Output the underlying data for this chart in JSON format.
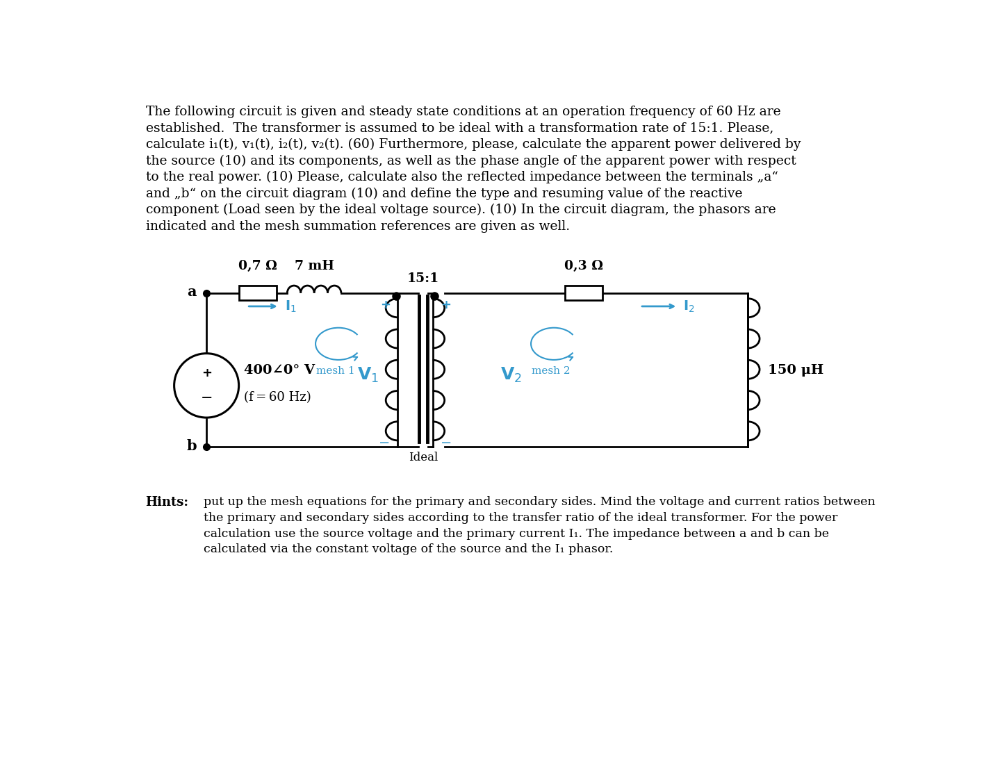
{
  "background_color": "#ffffff",
  "body_text_line1": "The following circuit is given and steady state conditions at an operation frequency of 60 Hz are",
  "body_text_line2": "established.  The transformer is assumed to be ideal with a transformation rate of 15:1. Please,",
  "body_text_line3": "calculate i₁(t), v₁(t), i₂(t), v₂(t). (60) Furthermore, please, calculate the apparent power delivered by",
  "body_text_line4": "the source (10) and its components, as well as the phase angle of the apparent power with respect",
  "body_text_line5": "to the real power. (10) Please, calculate also the reflected impedance between the terminals „a“",
  "body_text_line6": "and „b“ on the circuit diagram (10) and define the type and resuming value of the reactive",
  "body_text_line7": "component (Load seen by the ideal voltage source). (10) In the circuit diagram, the phasors are",
  "body_text_line8": "indicated and the mesh summation references are given as well.",
  "hints_label": "Hints:",
  "hints_line1": "put up the mesh equations for the primary and secondary sides. Mind the voltage and current ratios between",
  "hints_line2": "the primary and secondary sides according to the transfer ratio of the ideal transformer. For the power",
  "hints_line3": "calculation use the source voltage and the primary current I₁. The impedance between a and b can be",
  "hints_line4": "calculated via the constant voltage of the source and the I₁ phasor.",
  "circuit_color": "#000000",
  "blue_color": "#3399cc",
  "text_fontsize": 13.5,
  "hints_fontsize": 13.0
}
